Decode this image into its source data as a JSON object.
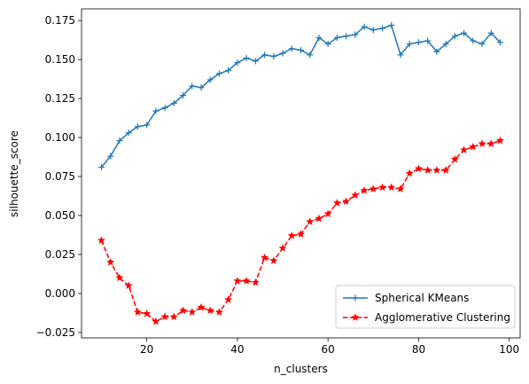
{
  "chart_data": {
    "type": "line",
    "xlabel": "n_clusters",
    "ylabel": "silhouette_score",
    "xlim": [
      5.6,
      102.4
    ],
    "ylim": [
      -0.0285,
      0.1825
    ],
    "xticks": [
      20,
      40,
      60,
      80,
      100
    ],
    "yticks": [
      -0.025,
      0.0,
      0.025,
      0.05,
      0.075,
      0.1,
      0.125,
      0.15,
      0.175
    ],
    "ytick_labels": [
      "−0.025",
      "0.000",
      "0.025",
      "0.050",
      "0.075",
      "0.100",
      "0.125",
      "0.150",
      "0.175"
    ],
    "grid": false,
    "legend_position": "lower-right",
    "x": [
      10,
      12,
      14,
      16,
      18,
      20,
      22,
      24,
      26,
      28,
      30,
      32,
      34,
      36,
      38,
      40,
      42,
      44,
      46,
      48,
      50,
      52,
      54,
      56,
      58,
      60,
      62,
      64,
      66,
      68,
      70,
      72,
      74,
      76,
      78,
      80,
      82,
      84,
      86,
      88,
      90,
      92,
      94,
      96,
      98
    ],
    "series": [
      {
        "name": "Spherical KMeans",
        "color": "#1f77b4",
        "linestyle": "solid",
        "marker": "plus",
        "values": [
          0.081,
          0.088,
          0.098,
          0.103,
          0.107,
          0.108,
          0.117,
          0.119,
          0.122,
          0.127,
          0.133,
          0.132,
          0.137,
          0.141,
          0.143,
          0.148,
          0.151,
          0.149,
          0.153,
          0.152,
          0.154,
          0.157,
          0.156,
          0.153,
          0.164,
          0.16,
          0.164,
          0.165,
          0.166,
          0.171,
          0.169,
          0.17,
          0.172,
          0.153,
          0.16,
          0.161,
          0.162,
          0.155,
          0.16,
          0.165,
          0.167,
          0.162,
          0.16,
          0.167,
          0.161
        ]
      },
      {
        "name": "Agglomerative Clustering",
        "color": "#ff0000",
        "linestyle": "dashed",
        "marker": "star",
        "values": [
          0.034,
          0.02,
          0.01,
          0.005,
          -0.012,
          -0.013,
          -0.018,
          -0.015,
          -0.015,
          -0.011,
          -0.012,
          -0.009,
          -0.011,
          -0.012,
          -0.004,
          0.008,
          0.008,
          0.007,
          0.023,
          0.021,
          0.029,
          0.037,
          0.038,
          0.046,
          0.048,
          0.051,
          0.058,
          0.059,
          0.063,
          0.066,
          0.067,
          0.068,
          0.068,
          0.067,
          0.077,
          0.08,
          0.079,
          0.079,
          0.079,
          0.086,
          0.092,
          0.094,
          0.096,
          0.096,
          0.098
        ]
      }
    ]
  }
}
